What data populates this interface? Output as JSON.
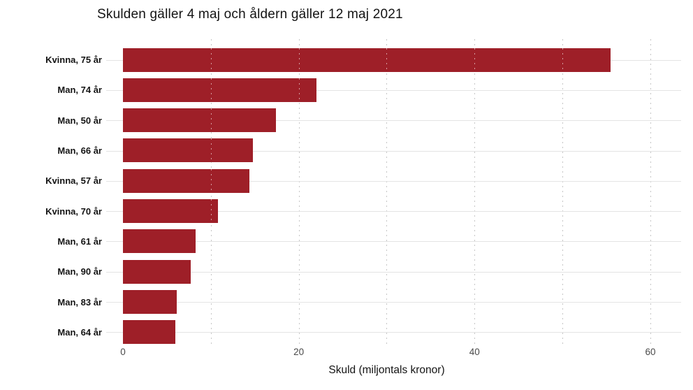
{
  "chart_data": {
    "type": "bar",
    "orientation": "horizontal",
    "title": "Skulden gäller 4 maj och åldern gäller 12 maj 2021",
    "categories": [
      "Kvinna, 75 år",
      "Man, 74 år",
      "Man, 50 år",
      "Man, 66 år",
      "Kvinna, 57 år",
      "Kvinna, 70 år",
      "Man, 61 år",
      "Man, 90 år",
      "Man, 83 år",
      "Man, 64 år"
    ],
    "values": [
      55.5,
      22.0,
      17.4,
      14.8,
      14.4,
      10.8,
      8.3,
      7.7,
      6.1,
      6.0
    ],
    "xlabel": "Skuld (miljontals kronor)",
    "xlim": [
      0,
      60
    ],
    "xticks": [
      0,
      20,
      40,
      60
    ],
    "minor_grid_step": 10,
    "grid": true,
    "legend": false,
    "bar_color": "#9e1f28",
    "gridline_color": "#e4e4e4",
    "dotted_gridline_color": "#c6c6c6"
  }
}
